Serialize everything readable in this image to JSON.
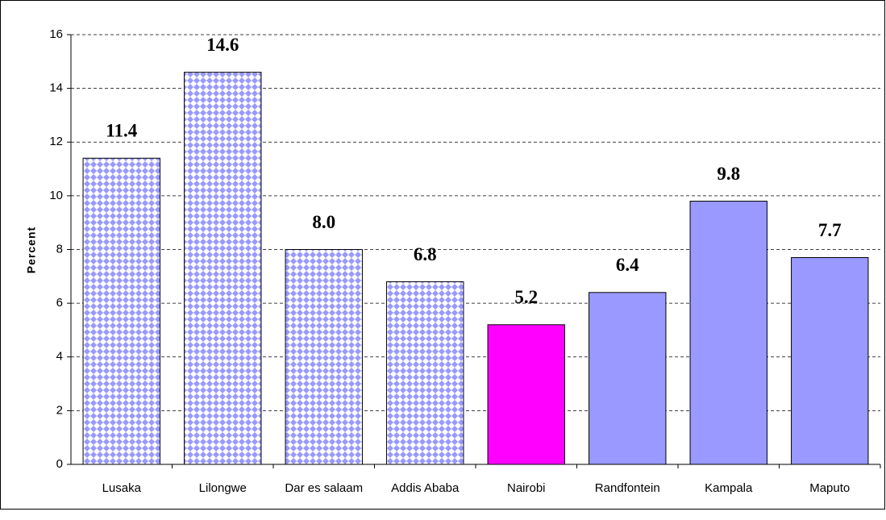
{
  "chart_data": {
    "type": "bar",
    "y_label": "Percent",
    "categories": [
      "Lusaka",
      "Lilongwe",
      "Dar es salaam",
      "Addis Ababa",
      "Nairobi",
      "Randfontein",
      "Kampala",
      "Maputo"
    ],
    "values": [
      11.4,
      14.6,
      8.0,
      6.8,
      5.2,
      6.4,
      9.8,
      7.7
    ],
    "value_labels": [
      "11.4",
      "14.6",
      "8.0",
      "6.8",
      "5.2",
      "6.4",
      "9.8",
      "7.7"
    ],
    "colors": [
      "#9999ff",
      "#9999ff",
      "#9999ff",
      "#9999ff",
      "#ff00ff",
      "#9999ff",
      "#9999ff",
      "#9999ff"
    ],
    "patterned": [
      true,
      true,
      true,
      true,
      false,
      false,
      false,
      false
    ],
    "ylim": [
      0,
      16
    ],
    "yticks": [
      0,
      2,
      4,
      6,
      8,
      10,
      12,
      14,
      16
    ],
    "grid": true
  }
}
